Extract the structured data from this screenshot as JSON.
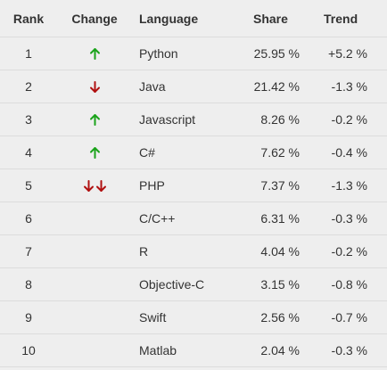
{
  "headers": {
    "rank": "Rank",
    "change": "Change",
    "language": "Language",
    "share": "Share",
    "trend": "Trend"
  },
  "colors": {
    "up": "#1aa31a",
    "down": "#b01010"
  },
  "rows": [
    {
      "rank": "1",
      "change": [
        "up"
      ],
      "language": "Python",
      "share": "25.95 %",
      "trend": "+5.2 %"
    },
    {
      "rank": "2",
      "change": [
        "down"
      ],
      "language": "Java",
      "share": "21.42 %",
      "trend": "-1.3 %"
    },
    {
      "rank": "3",
      "change": [
        "up"
      ],
      "language": "Javascript",
      "share": "8.26 %",
      "trend": "-0.2 %"
    },
    {
      "rank": "4",
      "change": [
        "up"
      ],
      "language": "C#",
      "share": "7.62 %",
      "trend": "-0.4 %"
    },
    {
      "rank": "5",
      "change": [
        "down",
        "down"
      ],
      "language": "PHP",
      "share": "7.37 %",
      "trend": "-1.3 %"
    },
    {
      "rank": "6",
      "change": [],
      "language": "C/C++",
      "share": "6.31 %",
      "trend": "-0.3 %"
    },
    {
      "rank": "7",
      "change": [],
      "language": "R",
      "share": "4.04 %",
      "trend": "-0.2 %"
    },
    {
      "rank": "8",
      "change": [],
      "language": "Objective-C",
      "share": "3.15 %",
      "trend": "-0.8 %"
    },
    {
      "rank": "9",
      "change": [],
      "language": "Swift",
      "share": "2.56 %",
      "trend": "-0.7 %"
    },
    {
      "rank": "10",
      "change": [],
      "language": "Matlab",
      "share": "2.04 %",
      "trend": "-0.3 %"
    }
  ]
}
